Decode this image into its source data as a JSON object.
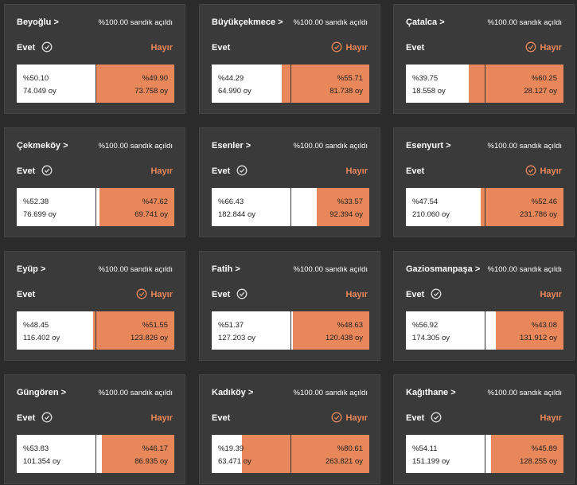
{
  "labels": {
    "yes": "Evet",
    "no": "Hayır",
    "opened": "%100.00 sandık açıldı"
  },
  "cards": [
    {
      "name": "Beyoğlu >",
      "winner": "yes",
      "yes_share": {
        "value": 50.1,
        "label": "%50.10"
      },
      "yes_votes": "74.049 oy",
      "no_share": {
        "value": 49.9,
        "label": "%49.90"
      },
      "no_votes": "73.758 oy"
    },
    {
      "name": "Büyükçekmece >",
      "winner": "no",
      "yes_share": {
        "value": 44.29,
        "label": "%44.29"
      },
      "yes_votes": "64.990 oy",
      "no_share": {
        "value": 55.71,
        "label": "%55.71"
      },
      "no_votes": "81.738 oy"
    },
    {
      "name": "Çatalca >",
      "winner": "no",
      "yes_share": {
        "value": 39.75,
        "label": "%39.75"
      },
      "yes_votes": "18.558 oy",
      "no_share": {
        "value": 60.25,
        "label": "%60.25"
      },
      "no_votes": "28.127 oy"
    },
    {
      "name": "Çekmeköy >",
      "winner": "yes",
      "yes_share": {
        "value": 52.38,
        "label": "%52.38"
      },
      "yes_votes": "76.699 oy",
      "no_share": {
        "value": 47.62,
        "label": "%47.62"
      },
      "no_votes": "69.741 oy"
    },
    {
      "name": "Esenler >",
      "winner": "yes",
      "yes_share": {
        "value": 66.43,
        "label": "%66.43"
      },
      "yes_votes": "182.844 oy",
      "no_share": {
        "value": 33.57,
        "label": "%33.57"
      },
      "no_votes": "92.394 oy"
    },
    {
      "name": "Esenyurt >",
      "winner": "no",
      "yes_share": {
        "value": 47.54,
        "label": "%47.54"
      },
      "yes_votes": "210.060 oy",
      "no_share": {
        "value": 52.46,
        "label": "%52.46"
      },
      "no_votes": "231.786 oy"
    },
    {
      "name": "Eyüp >",
      "winner": "no",
      "yes_share": {
        "value": 48.45,
        "label": "%48.45"
      },
      "yes_votes": "116.402 oy",
      "no_share": {
        "value": 51.55,
        "label": "%51.55"
      },
      "no_votes": "123.826 oy"
    },
    {
      "name": "Fatih >",
      "winner": "yes",
      "yes_share": {
        "value": 51.37,
        "label": "%51.37"
      },
      "yes_votes": "127.203 oy",
      "no_share": {
        "value": 48.63,
        "label": "%48.63"
      },
      "no_votes": "120.438 oy"
    },
    {
      "name": "Gaziosmanpaşa >",
      "winner": "yes",
      "yes_share": {
        "value": 56.92,
        "label": "%56.92"
      },
      "yes_votes": "174.305 oy",
      "no_share": {
        "value": 43.08,
        "label": "%43.08"
      },
      "no_votes": "131.912 oy"
    },
    {
      "name": "Güngören >",
      "winner": "yes",
      "yes_share": {
        "value": 53.83,
        "label": "%53.83"
      },
      "yes_votes": "101.354 oy",
      "no_share": {
        "value": 46.17,
        "label": "%46.17"
      },
      "no_votes": "86.935 oy"
    },
    {
      "name": "Kadıköy >",
      "winner": "no",
      "yes_share": {
        "value": 19.39,
        "label": "%19.39"
      },
      "yes_votes": "63.471 oy",
      "no_share": {
        "value": 80.61,
        "label": "%80.61"
      },
      "no_votes": "263.821 oy"
    },
    {
      "name": "Kağıthane >",
      "winner": "yes",
      "yes_share": {
        "value": 54.11,
        "label": "%54.11"
      },
      "yes_votes": "151.199 oy",
      "no_share": {
        "value": 45.89,
        "label": "%45.89"
      },
      "no_votes": "128.255 oy"
    }
  ]
}
